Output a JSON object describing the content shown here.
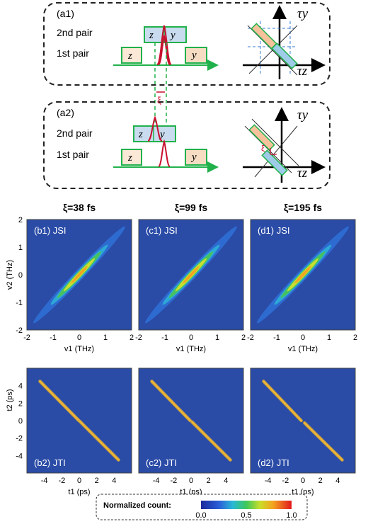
{
  "panel_a1": {
    "label": "(a1)",
    "pair2": "2nd pair",
    "pair1": "1st pair",
    "z": "z",
    "y": "y"
  },
  "panel_a2": {
    "label": "(a2)",
    "pair2": "2nd pair",
    "pair1": "1st pair",
    "z": "z",
    "y": "y"
  },
  "xi_symbol": "ξ",
  "axis_tau_y": "τy",
  "axis_tau_z": "τz",
  "colors": {
    "pulse": "#c8102e",
    "green": "#21b14b",
    "z_fill": "#fbe8d6",
    "y_fill": "#f6dcc2",
    "pair2_fill": "#c9dcef",
    "navy": "#1f4e8c"
  },
  "column_titles": [
    "ξ=38 fs",
    "ξ=99 fs",
    "ξ=195 fs"
  ],
  "jsi_labels": [
    "(b1)  JSI",
    "(c1)  JSI",
    "(d1)  JSI"
  ],
  "jti_labels": [
    "(b2)  JTI",
    "(c2)  JTI",
    "(d2)  JTI"
  ],
  "jsi_xlabel": "v1  (THz)",
  "jsi_ylabel": "v2 (THz)",
  "jti_xlabel": "t1  (ps)",
  "jti_ylabel": "t2  (ps)",
  "jsi_xticks": [
    "-2",
    "-1",
    "0",
    "1",
    "2"
  ],
  "jsi_yticks": [
    "2",
    "1",
    "0",
    "-1",
    "-2"
  ],
  "jti_xticks": [
    "-4",
    "-2",
    "0",
    "2",
    "4"
  ],
  "jti_yticks": [
    "4",
    "2",
    "0",
    "-2",
    "-4"
  ],
  "colorbar": {
    "title": "Normalized count:",
    "ticks": [
      "0.0",
      "0.5",
      "1.0"
    ]
  },
  "chart_data": [
    {
      "type": "heatmap",
      "title": "(b1) JSI",
      "xlabel": "v1 (THz)",
      "ylabel": "v2 (THz)",
      "xlim": [
        -2,
        2
      ],
      "ylim": [
        -2,
        2
      ],
      "xi_fs": 38
    },
    {
      "type": "heatmap",
      "title": "(c1) JSI",
      "xlabel": "v1 (THz)",
      "ylabel": "v2 (THz)",
      "xlim": [
        -2,
        2
      ],
      "ylim": [
        -2,
        2
      ],
      "xi_fs": 99
    },
    {
      "type": "heatmap",
      "title": "(d1) JSI",
      "xlabel": "v1 (THz)",
      "ylabel": "v2 (THz)",
      "xlim": [
        -2,
        2
      ],
      "ylim": [
        -2,
        2
      ],
      "xi_fs": 195
    },
    {
      "type": "heatmap",
      "title": "(b2) JTI",
      "xlabel": "t1 (ps)",
      "ylabel": "t2 (ps)",
      "xlim": [
        -6,
        6
      ],
      "ylim": [
        -6,
        6
      ],
      "line_from": [
        -4.5,
        4.5
      ],
      "line_to": [
        4.5,
        -4.5
      ],
      "gap": 0.04
    },
    {
      "type": "heatmap",
      "title": "(c2) JTI",
      "xlabel": "t1 (ps)",
      "ylabel": "t2 (ps)",
      "xlim": [
        -6,
        6
      ],
      "ylim": [
        -6,
        6
      ],
      "line_from": [
        -4.5,
        4.5
      ],
      "line_to": [
        4.5,
        -4.5
      ],
      "gap": 0.1
    },
    {
      "type": "heatmap",
      "title": "(d2) JTI",
      "xlabel": "t1 (ps)",
      "ylabel": "t2 (ps)",
      "xlim": [
        -6,
        6
      ],
      "ylim": [
        -6,
        6
      ],
      "line_from": [
        -4.5,
        4.5
      ],
      "line_to": [
        4.5,
        -4.5
      ],
      "gap": 0.19
    }
  ]
}
